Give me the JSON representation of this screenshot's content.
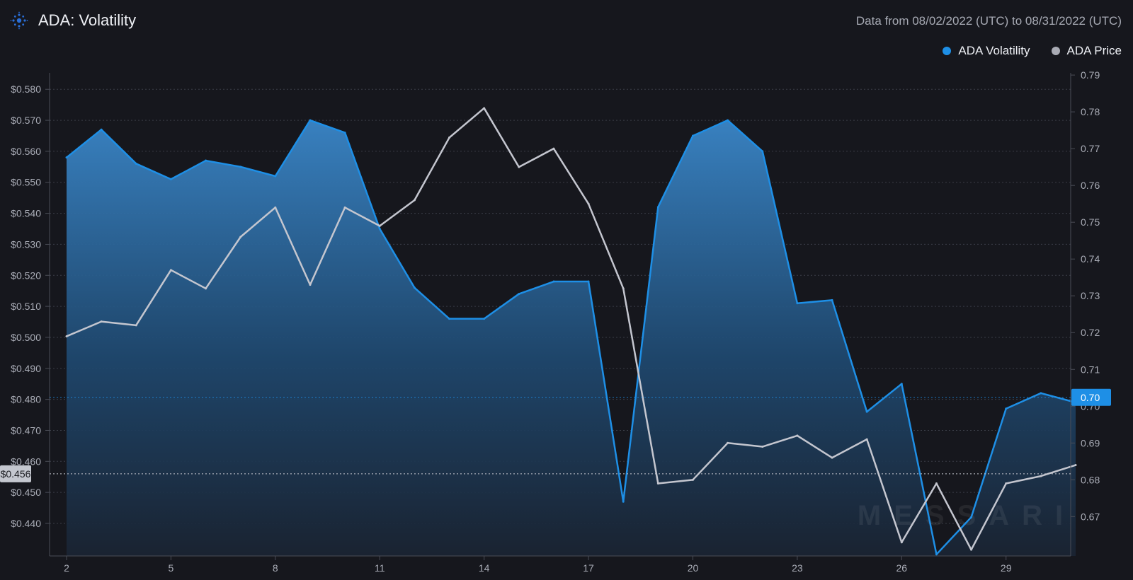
{
  "header": {
    "title": "ADA: Volatility",
    "date_range": "Data from 08/02/2022 (UTC) to 08/31/2022 (UTC)"
  },
  "colors": {
    "background": "#16171d",
    "volatility": "#1e8fe6",
    "price": "#c4c6cf",
    "grid": "#3a3d47"
  },
  "watermark": "MESSARI",
  "chart_data": {
    "type": "area",
    "x": [
      2,
      3,
      4,
      5,
      6,
      7,
      8,
      9,
      10,
      11,
      12,
      13,
      14,
      15,
      16,
      17,
      18,
      19,
      20,
      21,
      22,
      23,
      24,
      25,
      26,
      27,
      28,
      29,
      30,
      31
    ],
    "x_ticks": [
      "2",
      "5",
      "8",
      "11",
      "14",
      "17",
      "20",
      "23",
      "26",
      "29"
    ],
    "x_tick_values": [
      2,
      5,
      8,
      11,
      14,
      17,
      20,
      23,
      26,
      29
    ],
    "series": [
      {
        "name": "ADA Volatility",
        "type": "area",
        "axis": "left",
        "values": [
          0.558,
          0.567,
          0.556,
          0.551,
          0.557,
          0.555,
          0.552,
          0.57,
          0.566,
          0.535,
          0.516,
          0.506,
          0.506,
          0.514,
          0.518,
          0.518,
          0.447,
          0.542,
          0.565,
          0.57,
          0.56,
          0.511,
          0.512,
          0.476,
          0.485,
          0.43,
          0.442,
          0.477,
          0.482,
          0.479
        ]
      },
      {
        "name": "ADA Price",
        "type": "line",
        "axis": "right",
        "values": [
          0.719,
          0.723,
          0.722,
          0.737,
          0.732,
          0.746,
          0.754,
          0.733,
          0.754,
          0.749,
          0.756,
          0.773,
          0.781,
          0.765,
          0.77,
          0.755,
          0.732,
          0.679,
          0.68,
          0.69,
          0.689,
          0.692,
          0.686,
          0.691,
          0.663,
          0.679,
          0.661,
          0.679,
          0.681,
          0.684
        ]
      }
    ],
    "left_axis": {
      "ticks": [
        "$0.580",
        "$0.570",
        "$0.560",
        "$0.550",
        "$0.540",
        "$0.530",
        "$0.520",
        "$0.510",
        "$0.500",
        "$0.490",
        "$0.480",
        "$0.470",
        "$0.460",
        "$0.450",
        "$0.440"
      ],
      "tick_values": [
        0.58,
        0.57,
        0.56,
        0.55,
        0.54,
        0.53,
        0.52,
        0.51,
        0.5,
        0.49,
        0.48,
        0.47,
        0.46,
        0.45,
        0.44
      ],
      "range": [
        0.4295,
        0.5853
      ]
    },
    "right_axis": {
      "ticks": [
        "0.79",
        "0.78",
        "0.77",
        "0.76",
        "0.75",
        "0.74",
        "0.73",
        "0.72",
        "0.71",
        "0.70",
        "0.69",
        "0.68",
        "0.67"
      ],
      "tick_values": [
        0.79,
        0.78,
        0.77,
        0.76,
        0.75,
        0.74,
        0.73,
        0.72,
        0.71,
        0.7,
        0.69,
        0.68,
        0.67
      ],
      "range": [
        0.6593,
        0.7906
      ]
    },
    "current_left": {
      "label": "$0.456",
      "value": 0.456
    },
    "current_right": {
      "label": "0.70",
      "value": 0.7024
    },
    "legend_position": "top-right",
    "grid": true
  }
}
